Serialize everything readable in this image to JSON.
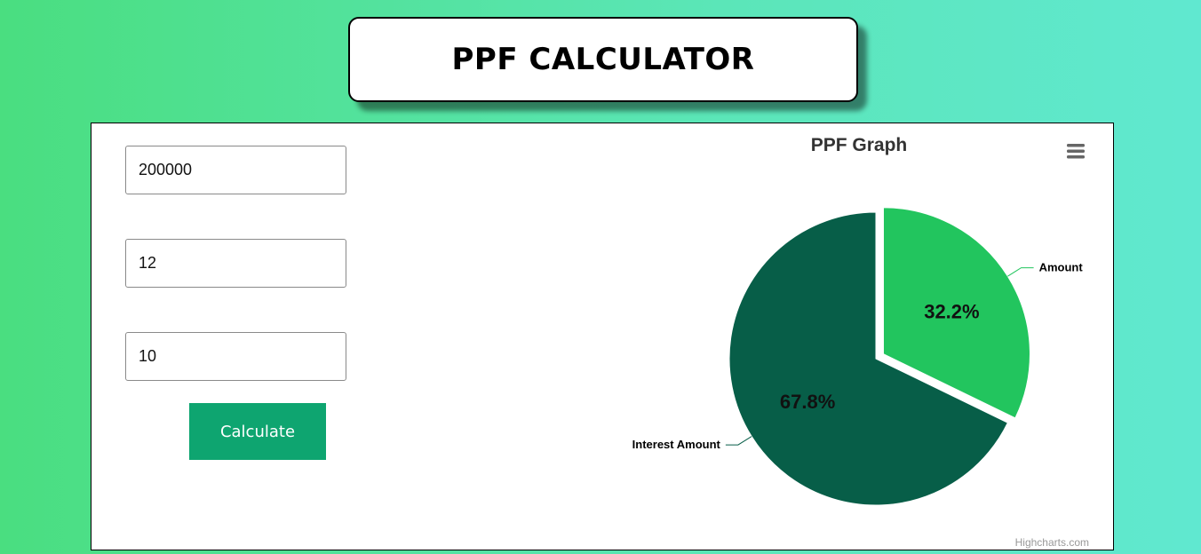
{
  "header": {
    "title": "PPF CALCULATOR"
  },
  "form": {
    "amount_value": "200000",
    "rate_value": "12",
    "years_value": "10",
    "calculate_label": "Calculate"
  },
  "chart_data": {
    "type": "pie",
    "title": "PPF Graph",
    "slices": [
      {
        "name": "Amount",
        "percent": 32.2,
        "percent_label": "32.2%",
        "color": "#22c55e",
        "sliced": true
      },
      {
        "name": "Interest Amount",
        "percent": 67.8,
        "percent_label": "67.8%",
        "color": "#075e48",
        "sliced": false
      }
    ],
    "credits": "Highcharts.com",
    "menu_icon": "hamburger-menu-icon"
  }
}
